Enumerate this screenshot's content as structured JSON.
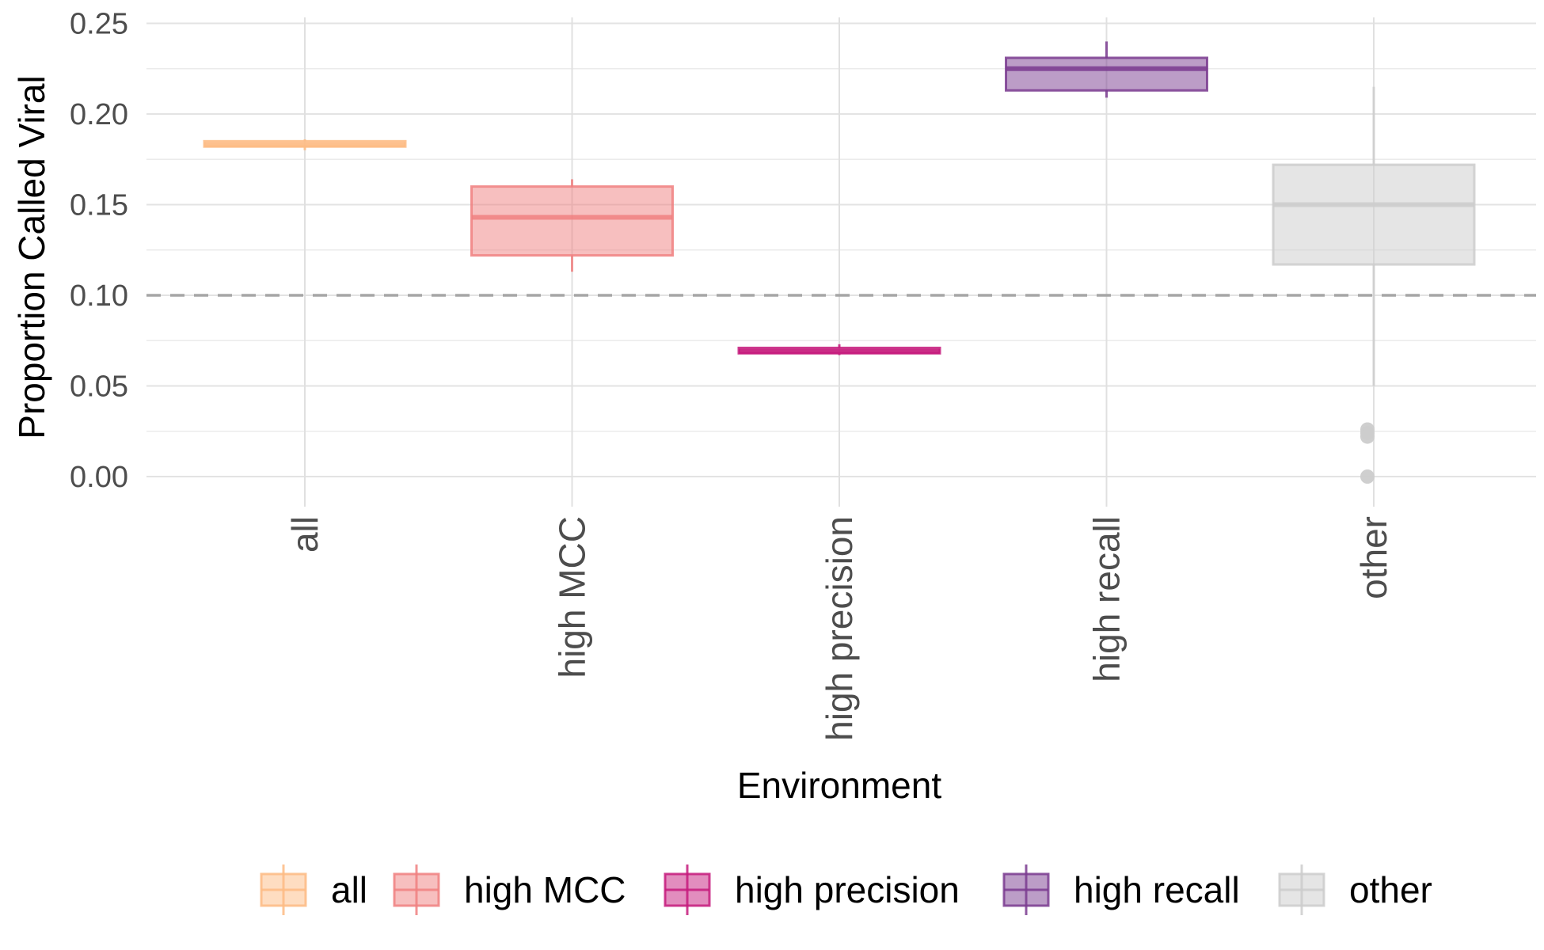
{
  "chart_data": {
    "type": "box",
    "xlabel": "Environment",
    "ylabel": "Proportion Called Viral",
    "ylim": [
      -0.015,
      0.255
    ],
    "yticks": [
      "0.00",
      "0.05",
      "0.10",
      "0.15",
      "0.20",
      "0.25"
    ],
    "ytick_values": [
      0.0,
      0.05,
      0.1,
      0.15,
      0.2,
      0.25
    ],
    "reference_line": {
      "y": 0.1,
      "style": "dashed",
      "color": "#a6a6a6"
    },
    "grid": true,
    "legend_position": "bottom",
    "categories": [
      "all",
      "high MCC",
      "high precision",
      "high recall",
      "other"
    ],
    "series": [
      {
        "name": "all",
        "color": "#fdbb84",
        "whisker_low": 0.18,
        "q1": 0.182,
        "median": 0.183,
        "q3": 0.185,
        "whisker_high": 0.186,
        "outliers": []
      },
      {
        "name": "high MCC",
        "color": "#f08080",
        "whisker_low": 0.113,
        "q1": 0.122,
        "median": 0.143,
        "q3": 0.16,
        "whisker_high": 0.164,
        "outliers": []
      },
      {
        "name": "high precision",
        "color": "#c51b7d",
        "whisker_low": 0.067,
        "q1": 0.068,
        "median": 0.069,
        "q3": 0.071,
        "whisker_high": 0.073,
        "outliers": []
      },
      {
        "name": "high recall",
        "color": "#7a3b8f",
        "whisker_low": 0.209,
        "q1": 0.213,
        "median": 0.225,
        "q3": 0.231,
        "whisker_high": 0.24,
        "outliers": []
      },
      {
        "name": "other",
        "color": "#cccccc",
        "whisker_low": 0.05,
        "q1": 0.117,
        "median": 0.15,
        "q3": 0.172,
        "whisker_high": 0.215,
        "outliers": [
          0.026,
          0.024,
          0.022,
          0.0
        ]
      }
    ]
  }
}
